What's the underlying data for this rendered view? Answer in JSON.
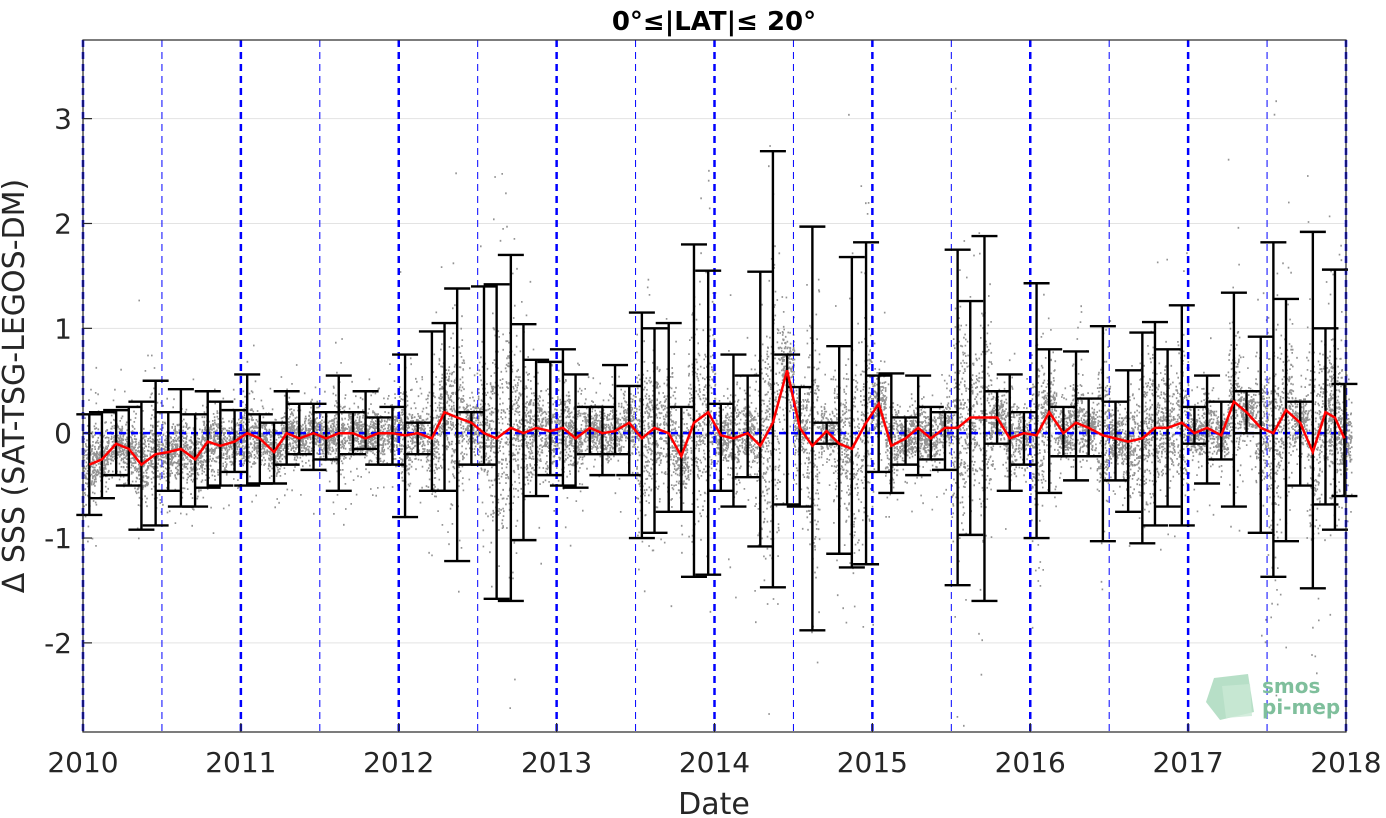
{
  "chart_data": {
    "type": "scatter",
    "title": "0°≤|LAT|≤ 20°",
    "xlabel": "Date",
    "ylabel": "Δ SSS (SAT-TSG-LEGOS-DM)",
    "xlim": [
      2010,
      2018
    ],
    "ylim": [
      -2.85,
      3.75
    ],
    "x_ticks": [
      2010,
      2011,
      2012,
      2013,
      2014,
      2015,
      2016,
      2017,
      2018
    ],
    "x_tick_labels": [
      "2010",
      "2011",
      "2012",
      "2013",
      "2014",
      "2015",
      "2016",
      "2017",
      "2018"
    ],
    "y_ticks": [
      -2,
      -1,
      0,
      1,
      2,
      3
    ],
    "y_tick_labels": [
      "-2",
      "-1",
      "0",
      "1",
      "2",
      "3"
    ],
    "grid": "horizontal",
    "reference_line": 0,
    "colors": {
      "points": "#808080",
      "mean": "#ff0000",
      "errorbars": "#000000",
      "year_lines": "#0000ff",
      "zero_line": "#0000ff"
    },
    "monthly": [
      {
        "x": 2010.04,
        "mean": -0.3,
        "lo": -0.78,
        "hi": 0.18
      },
      {
        "x": 2010.12,
        "mean": -0.25,
        "lo": -0.62,
        "hi": 0.2
      },
      {
        "x": 2010.21,
        "mean": -0.1,
        "lo": -0.4,
        "hi": 0.22
      },
      {
        "x": 2010.29,
        "mean": -0.15,
        "lo": -0.5,
        "hi": 0.25
      },
      {
        "x": 2010.37,
        "mean": -0.3,
        "lo": -0.92,
        "hi": 0.3
      },
      {
        "x": 2010.46,
        "mean": -0.2,
        "lo": -0.88,
        "hi": 0.5
      },
      {
        "x": 2010.54,
        "mean": -0.18,
        "lo": -0.55,
        "hi": 0.2
      },
      {
        "x": 2010.62,
        "mean": -0.15,
        "lo": -0.7,
        "hi": 0.42
      },
      {
        "x": 2010.71,
        "mean": -0.25,
        "lo": -0.7,
        "hi": 0.18
      },
      {
        "x": 2010.79,
        "mean": -0.08,
        "lo": -0.52,
        "hi": 0.4
      },
      {
        "x": 2010.87,
        "mean": -0.12,
        "lo": -0.5,
        "hi": 0.3
      },
      {
        "x": 2010.96,
        "mean": -0.08,
        "lo": -0.37,
        "hi": 0.22
      },
      {
        "x": 2011.04,
        "mean": 0.0,
        "lo": -0.5,
        "hi": 0.56
      },
      {
        "x": 2011.12,
        "mean": -0.05,
        "lo": -0.48,
        "hi": 0.18
      },
      {
        "x": 2011.21,
        "mean": -0.18,
        "lo": -0.48,
        "hi": 0.1
      },
      {
        "x": 2011.29,
        "mean": 0.0,
        "lo": -0.3,
        "hi": 0.4
      },
      {
        "x": 2011.37,
        "mean": -0.05,
        "lo": -0.2,
        "hi": 0.28
      },
      {
        "x": 2011.46,
        "mean": 0.0,
        "lo": -0.35,
        "hi": 0.28
      },
      {
        "x": 2011.54,
        "mean": -0.05,
        "lo": -0.25,
        "hi": 0.2
      },
      {
        "x": 2011.62,
        "mean": 0.0,
        "lo": -0.55,
        "hi": 0.55
      },
      {
        "x": 2011.71,
        "mean": 0.0,
        "lo": -0.2,
        "hi": 0.2
      },
      {
        "x": 2011.79,
        "mean": -0.05,
        "lo": -0.15,
        "hi": 0.4
      },
      {
        "x": 2011.87,
        "mean": 0.0,
        "lo": -0.3,
        "hi": 0.15
      },
      {
        "x": 2011.96,
        "mean": 0.0,
        "lo": -0.3,
        "hi": 0.25
      },
      {
        "x": 2012.04,
        "mean": -0.02,
        "lo": -0.8,
        "hi": 0.75
      },
      {
        "x": 2012.12,
        "mean": 0.0,
        "lo": -0.2,
        "hi": 0.1
      },
      {
        "x": 2012.21,
        "mean": -0.05,
        "lo": -0.55,
        "hi": 0.97
      },
      {
        "x": 2012.29,
        "mean": 0.2,
        "lo": -0.55,
        "hi": 1.05
      },
      {
        "x": 2012.37,
        "mean": 0.15,
        "lo": -1.22,
        "hi": 1.38
      },
      {
        "x": 2012.46,
        "mean": 0.1,
        "lo": -0.3,
        "hi": 0.2
      },
      {
        "x": 2012.54,
        "mean": 0.0,
        "lo": -0.3,
        "hi": 1.4
      },
      {
        "x": 2012.62,
        "mean": -0.05,
        "lo": -1.58,
        "hi": 1.42
      },
      {
        "x": 2012.71,
        "mean": 0.05,
        "lo": -1.6,
        "hi": 1.7
      },
      {
        "x": 2012.79,
        "mean": 0.0,
        "lo": -1.02,
        "hi": 1.04
      },
      {
        "x": 2012.87,
        "mean": 0.05,
        "lo": -0.6,
        "hi": 0.7
      },
      {
        "x": 2012.96,
        "mean": 0.02,
        "lo": -0.4,
        "hi": 0.68
      },
      {
        "x": 2013.04,
        "mean": 0.05,
        "lo": -0.5,
        "hi": 0.8
      },
      {
        "x": 2013.12,
        "mean": -0.05,
        "lo": -0.52,
        "hi": 0.56
      },
      {
        "x": 2013.21,
        "mean": 0.05,
        "lo": -0.2,
        "hi": 0.25
      },
      {
        "x": 2013.29,
        "mean": 0.0,
        "lo": -0.4,
        "hi": 0.25
      },
      {
        "x": 2013.37,
        "mean": 0.02,
        "lo": -0.2,
        "hi": 0.65
      },
      {
        "x": 2013.46,
        "mean": 0.1,
        "lo": -0.4,
        "hi": 0.45
      },
      {
        "x": 2013.54,
        "mean": -0.05,
        "lo": -1.0,
        "hi": 1.15
      },
      {
        "x": 2013.62,
        "mean": 0.05,
        "lo": -0.95,
        "hi": 1.0
      },
      {
        "x": 2013.71,
        "mean": 0.0,
        "lo": -0.75,
        "hi": 1.05
      },
      {
        "x": 2013.79,
        "mean": -0.22,
        "lo": -0.75,
        "hi": 0.25
      },
      {
        "x": 2013.87,
        "mean": 0.1,
        "lo": -1.37,
        "hi": 1.8
      },
      {
        "x": 2013.96,
        "mean": 0.2,
        "lo": -1.35,
        "hi": 1.55
      },
      {
        "x": 2014.04,
        "mean": -0.02,
        "lo": -0.55,
        "hi": 0.28
      },
      {
        "x": 2014.12,
        "mean": -0.05,
        "lo": -0.7,
        "hi": 0.75
      },
      {
        "x": 2014.21,
        "mean": 0.0,
        "lo": -0.42,
        "hi": 0.55
      },
      {
        "x": 2014.29,
        "mean": -0.12,
        "lo": -1.08,
        "hi": 1.54
      },
      {
        "x": 2014.37,
        "mean": 0.1,
        "lo": -1.47,
        "hi": 2.69
      },
      {
        "x": 2014.46,
        "mean": 0.6,
        "lo": -0.68,
        "hi": 0.75
      },
      {
        "x": 2014.54,
        "mean": 0.05,
        "lo": -0.7,
        "hi": 0.44
      },
      {
        "x": 2014.62,
        "mean": -0.12,
        "lo": -1.88,
        "hi": 1.97
      },
      {
        "x": 2014.71,
        "mean": 0.02,
        "lo": -0.1,
        "hi": 0.1
      },
      {
        "x": 2014.79,
        "mean": -0.1,
        "lo": -1.15,
        "hi": 0.83
      },
      {
        "x": 2014.87,
        "mean": -0.15,
        "lo": -1.28,
        "hi": 1.68
      },
      {
        "x": 2014.96,
        "mean": 0.1,
        "lo": -1.25,
        "hi": 1.82
      },
      {
        "x": 2015.04,
        "mean": 0.28,
        "lo": -0.37,
        "hi": 0.55
      },
      {
        "x": 2015.12,
        "mean": -0.12,
        "lo": -0.57,
        "hi": 0.57
      },
      {
        "x": 2015.21,
        "mean": -0.05,
        "lo": -0.3,
        "hi": 0.15
      },
      {
        "x": 2015.29,
        "mean": 0.05,
        "lo": -0.4,
        "hi": 0.55
      },
      {
        "x": 2015.37,
        "mean": -0.05,
        "lo": -0.25,
        "hi": 0.25
      },
      {
        "x": 2015.46,
        "mean": 0.05,
        "lo": -0.35,
        "hi": 0.2
      },
      {
        "x": 2015.54,
        "mean": 0.05,
        "lo": -1.45,
        "hi": 1.75
      },
      {
        "x": 2015.62,
        "mean": 0.15,
        "lo": -0.97,
        "hi": 1.26
      },
      {
        "x": 2015.71,
        "mean": 0.15,
        "lo": -1.6,
        "hi": 1.88
      },
      {
        "x": 2015.79,
        "mean": 0.15,
        "lo": -0.1,
        "hi": 0.4
      },
      {
        "x": 2015.87,
        "mean": -0.05,
        "lo": -0.55,
        "hi": 0.56
      },
      {
        "x": 2015.96,
        "mean": 0.0,
        "lo": -0.3,
        "hi": 0.2
      },
      {
        "x": 2016.04,
        "mean": -0.02,
        "lo": -1.0,
        "hi": 1.43
      },
      {
        "x": 2016.12,
        "mean": 0.2,
        "lo": -0.57,
        "hi": 0.8
      },
      {
        "x": 2016.21,
        "mean": 0.0,
        "lo": -0.22,
        "hi": 0.25
      },
      {
        "x": 2016.29,
        "mean": 0.1,
        "lo": -0.45,
        "hi": 0.78
      },
      {
        "x": 2016.37,
        "mean": 0.05,
        "lo": -0.22,
        "hi": 0.33
      },
      {
        "x": 2016.46,
        "mean": -0.02,
        "lo": -1.03,
        "hi": 1.02
      },
      {
        "x": 2016.54,
        "mean": -0.05,
        "lo": -0.45,
        "hi": 0.3
      },
      {
        "x": 2016.62,
        "mean": -0.08,
        "lo": -0.75,
        "hi": 0.6
      },
      {
        "x": 2016.71,
        "mean": -0.05,
        "lo": -1.05,
        "hi": 0.96
      },
      {
        "x": 2016.79,
        "mean": 0.05,
        "lo": -0.88,
        "hi": 1.06
      },
      {
        "x": 2016.87,
        "mean": 0.05,
        "lo": -0.7,
        "hi": 0.8
      },
      {
        "x": 2016.96,
        "mean": 0.1,
        "lo": -0.88,
        "hi": 1.22
      },
      {
        "x": 2017.04,
        "mean": 0.0,
        "lo": -0.1,
        "hi": 0.25
      },
      {
        "x": 2017.12,
        "mean": 0.05,
        "lo": -0.48,
        "hi": 0.55
      },
      {
        "x": 2017.21,
        "mean": -0.02,
        "lo": -0.25,
        "hi": 0.3
      },
      {
        "x": 2017.29,
        "mean": 0.3,
        "lo": -0.7,
        "hi": 1.34
      },
      {
        "x": 2017.37,
        "mean": 0.2,
        "lo": 0.0,
        "hi": 0.4
      },
      {
        "x": 2017.46,
        "mean": 0.05,
        "lo": -0.95,
        "hi": 0.92
      },
      {
        "x": 2017.54,
        "mean": 0.0,
        "lo": -1.37,
        "hi": 1.82
      },
      {
        "x": 2017.62,
        "mean": 0.22,
        "lo": -1.03,
        "hi": 1.28
      },
      {
        "x": 2017.71,
        "mean": 0.1,
        "lo": -0.5,
        "hi": 0.3
      },
      {
        "x": 2017.79,
        "mean": -0.18,
        "lo": -1.48,
        "hi": 1.92
      },
      {
        "x": 2017.87,
        "mean": 0.2,
        "lo": -0.68,
        "hi": 1.0
      },
      {
        "x": 2017.93,
        "mean": 0.15,
        "lo": -0.92,
        "hi": 1.56
      },
      {
        "x": 2017.99,
        "mean": -0.05,
        "lo": -0.6,
        "hi": 0.47
      }
    ]
  },
  "watermark": {
    "line1": "smos",
    "line2": "pi-mep"
  }
}
